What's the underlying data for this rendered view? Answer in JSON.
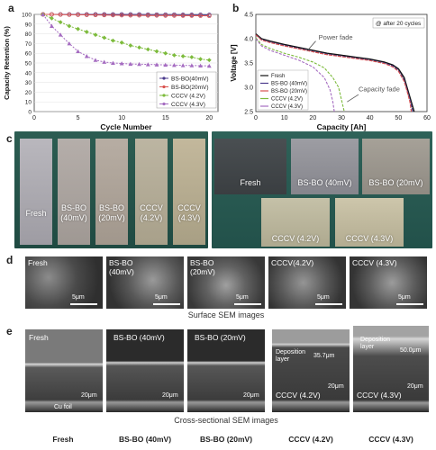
{
  "panels": {
    "a": "a",
    "b": "b",
    "c": "c",
    "d": "d",
    "e": "e"
  },
  "chart_data": [
    {
      "type": "line",
      "panel": "a",
      "xlabel": "Cycle Number",
      "ylabel": "Capacity Retention (%)",
      "xlim": [
        0,
        21
      ],
      "ylim": [
        0,
        100
      ],
      "xticks": [
        0,
        5,
        10,
        15,
        20
      ],
      "yticks": [
        0,
        10,
        20,
        30,
        40,
        50,
        60,
        70,
        80,
        90,
        100
      ],
      "legend_position": "center-right",
      "series": [
        {
          "name": "BS-BO(40mV)",
          "color": "#4b3a8c",
          "marker": "circle",
          "x": [
            1,
            2,
            3,
            4,
            5,
            6,
            7,
            8,
            9,
            10,
            11,
            12,
            13,
            14,
            15,
            16,
            17,
            18,
            19,
            20
          ],
          "y": [
            100,
            100,
            100,
            100,
            100,
            100,
            100,
            100,
            100,
            100,
            100,
            100,
            99.8,
            99.8,
            99.8,
            99.8,
            99.6,
            99.6,
            99.6,
            99.5
          ]
        },
        {
          "name": "BS-BO(20mV)",
          "color": "#d9534f",
          "marker": "circle",
          "x": [
            1,
            2,
            3,
            4,
            5,
            6,
            7,
            8,
            9,
            10,
            11,
            12,
            13,
            14,
            15,
            16,
            17,
            18,
            19,
            20
          ],
          "y": [
            100,
            100,
            99.8,
            99.7,
            99.6,
            99.5,
            99.4,
            99.3,
            99.2,
            99.1,
            99,
            99,
            98.9,
            98.9,
            98.8,
            98.8,
            98.7,
            98.7,
            98.6,
            98.5
          ]
        },
        {
          "name": "CCCV (4.2V)",
          "color": "#7dbb3c",
          "marker": "diamond",
          "x": [
            1,
            2,
            3,
            4,
            5,
            6,
            7,
            8,
            9,
            10,
            11,
            12,
            13,
            14,
            15,
            16,
            17,
            18,
            19,
            20
          ],
          "y": [
            100,
            96,
            92,
            88,
            85,
            82,
            79,
            76,
            73,
            71,
            68,
            66,
            64,
            62,
            60,
            58,
            57,
            56,
            54,
            53
          ]
        },
        {
          "name": "CCCV (4.3V)",
          "color": "#a56cc1",
          "marker": "triangle",
          "x": [
            1,
            2,
            3,
            4,
            5,
            6,
            7,
            8,
            9,
            10,
            11,
            12,
            13,
            14,
            15,
            16,
            17,
            18,
            19,
            20
          ],
          "y": [
            100,
            88,
            79,
            70,
            62,
            57,
            53,
            51,
            50,
            49.5,
            49,
            48.8,
            48.5,
            48.3,
            48,
            47.8,
            47.6,
            47.4,
            47.2,
            47
          ]
        }
      ]
    },
    {
      "type": "line",
      "panel": "b",
      "xlabel": "Capacity [Ah]",
      "ylabel": "Voltage [V]",
      "xlim": [
        0,
        60
      ],
      "ylim": [
        2.5,
        4.5
      ],
      "xticks": [
        0,
        10,
        20,
        30,
        40,
        50,
        60
      ],
      "yticks": [
        2.5,
        3.0,
        3.5,
        4.0,
        4.5
      ],
      "legend_position": "bottom-left",
      "annotations": [
        "@ after 20 cycles",
        "Power fade",
        "Capacity fade"
      ],
      "series": [
        {
          "name": "Fresh",
          "color": "#111111",
          "x": [
            0,
            2,
            5,
            10,
            15,
            20,
            25,
            30,
            35,
            40,
            45,
            48,
            50,
            52,
            53,
            54,
            55,
            55.5
          ],
          "y": [
            4.1,
            4.0,
            3.95,
            3.88,
            3.82,
            3.76,
            3.7,
            3.66,
            3.62,
            3.58,
            3.52,
            3.46,
            3.38,
            3.2,
            3.0,
            2.8,
            2.6,
            2.5
          ]
        },
        {
          "name": "BS-BO (40mV)",
          "color": "#4b3a8c",
          "x": [
            0,
            2,
            5,
            10,
            15,
            20,
            25,
            30,
            35,
            40,
            45,
            48,
            50,
            52,
            53,
            54,
            55
          ],
          "y": [
            4.08,
            3.98,
            3.93,
            3.86,
            3.8,
            3.74,
            3.68,
            3.64,
            3.6,
            3.56,
            3.5,
            3.44,
            3.35,
            3.15,
            2.95,
            2.75,
            2.5
          ]
        },
        {
          "name": "BS-BO (20mV)",
          "color": "#d9534f",
          "x": [
            0,
            2,
            5,
            10,
            15,
            20,
            25,
            30,
            35,
            40,
            45,
            48,
            50,
            52,
            53,
            54,
            54.5
          ],
          "y": [
            4.08,
            3.97,
            3.92,
            3.85,
            3.79,
            3.73,
            3.67,
            3.63,
            3.59,
            3.55,
            3.49,
            3.42,
            3.33,
            3.12,
            2.92,
            2.7,
            2.5
          ]
        },
        {
          "name": "CCCV (4.2V)",
          "color": "#7dbb3c",
          "x": [
            0,
            2,
            5,
            10,
            15,
            20,
            24,
            27,
            29,
            30,
            31
          ],
          "y": [
            4.02,
            3.88,
            3.8,
            3.7,
            3.62,
            3.52,
            3.4,
            3.2,
            3.0,
            2.75,
            2.5
          ]
        },
        {
          "name": "CCCV (4.3V)",
          "color": "#a56cc1",
          "x": [
            0,
            2,
            5,
            10,
            15,
            20,
            24,
            26,
            27,
            27.5
          ],
          "y": [
            4.0,
            3.85,
            3.76,
            3.66,
            3.56,
            3.42,
            3.2,
            2.95,
            2.7,
            2.5
          ]
        }
      ]
    }
  ],
  "panel_c": {
    "left_tags": [
      "Fresh",
      "BS-BO\n(40mV)",
      "BS-BO\n(20mV)",
      "CCCV\n(4.2V)",
      "CCCV\n(4.3V)"
    ],
    "right_tags": [
      "Fresh",
      "BS-BO (40mV)",
      "BS-BO (20mV)",
      "CCCV (4.2V)",
      "CCCV (4.3V)"
    ]
  },
  "panel_d": {
    "tags": [
      "Fresh",
      "BS-BO\n(40mV)",
      "BS-BO\n(20mV)",
      "CCCV(4.2V)",
      "CCCV (4.3V)"
    ],
    "scale": "5μm",
    "caption": "Surface SEM images"
  },
  "panel_e": {
    "tags": [
      "Fresh",
      "BS-BO (40mV)",
      "BS-BO (20mV)",
      "CCCV (4.2V)",
      "CCCV (4.3V)"
    ],
    "scale": "20μm",
    "foil": "Cu foil",
    "deposition": "Deposition\nlayer",
    "thickness_42": "35.7μm",
    "thickness_43": "50.0μm",
    "caption": "Cross-sectional SEM images",
    "footer": [
      "Fresh",
      "BS-BO (40mV)",
      "BS-BO (20mV)",
      "CCCV (4.2V)",
      "CCCV (4.3V)"
    ]
  }
}
